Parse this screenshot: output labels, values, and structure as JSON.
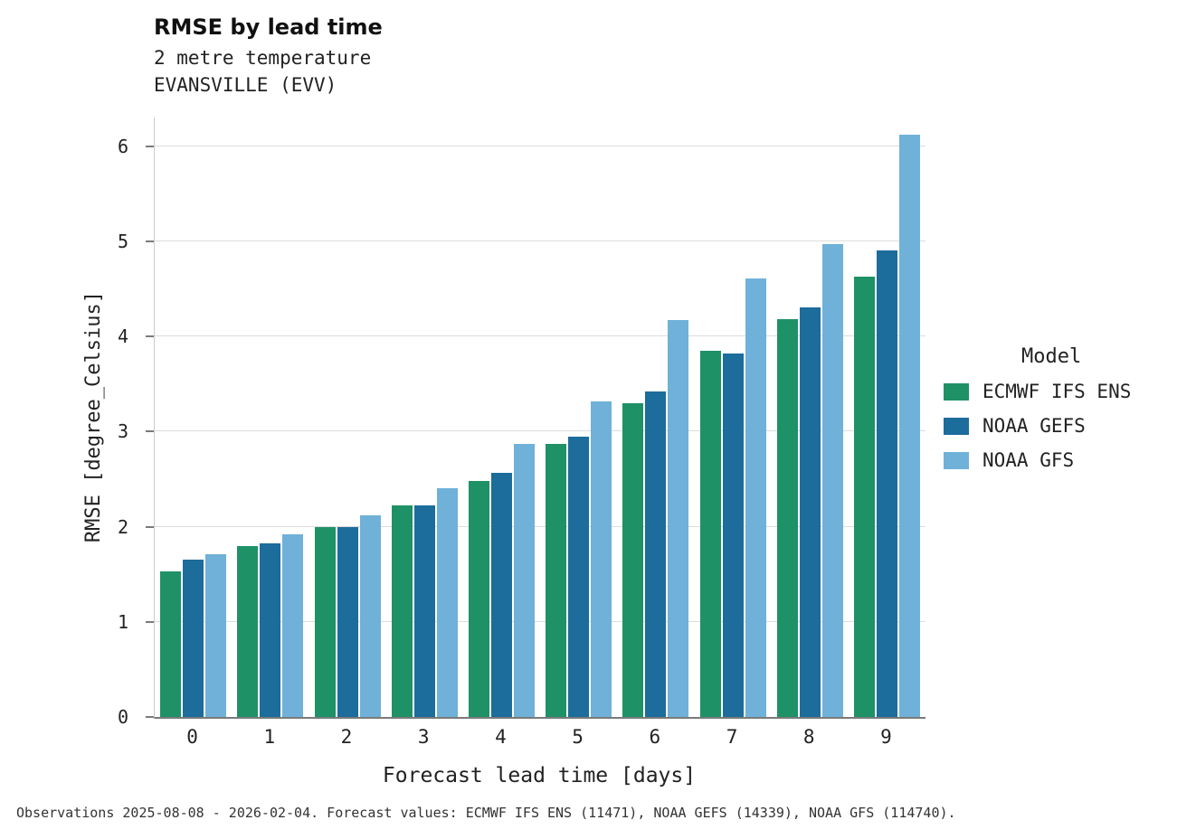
{
  "header": {
    "title": "RMSE by lead time",
    "subtitle1": "2 metre temperature",
    "subtitle2": "EVANSVILLE (EVV)"
  },
  "chart_data": {
    "type": "bar",
    "title": "RMSE by lead time",
    "subtitle": [
      "2 metre temperature",
      "EVANSVILLE (EVV)"
    ],
    "xlabel": "Forecast lead time [days]",
    "ylabel": "RMSE [degree_Celsius]",
    "categories": [
      "0",
      "1",
      "2",
      "3",
      "4",
      "5",
      "6",
      "7",
      "8",
      "9"
    ],
    "yticks": [
      0,
      1,
      2,
      3,
      4,
      5,
      6
    ],
    "ylim": [
      0,
      6.3
    ],
    "grid": true,
    "legend_title": "Model",
    "legend_position": "right",
    "series": [
      {
        "name": "ECMWF IFS ENS",
        "color": "#1e9167",
        "values": [
          1.53,
          1.8,
          2.0,
          2.22,
          2.48,
          2.87,
          3.3,
          3.85,
          4.18,
          4.63
        ]
      },
      {
        "name": "NOAA GEFS",
        "color": "#1c6c9c",
        "values": [
          1.65,
          1.82,
          2.0,
          2.22,
          2.57,
          2.95,
          3.42,
          3.82,
          4.3,
          4.9
        ]
      },
      {
        "name": "NOAA GFS",
        "color": "#6fb1d8",
        "values": [
          1.71,
          1.92,
          2.12,
          2.4,
          2.87,
          3.32,
          4.17,
          4.61,
          4.97,
          6.12
        ]
      }
    ]
  },
  "footer": {
    "note": "Observations 2025-08-08 - 2026-02-04. Forecast values: ECMWF IFS ENS (11471), NOAA GEFS (14339), NOAA GFS (114740)."
  }
}
